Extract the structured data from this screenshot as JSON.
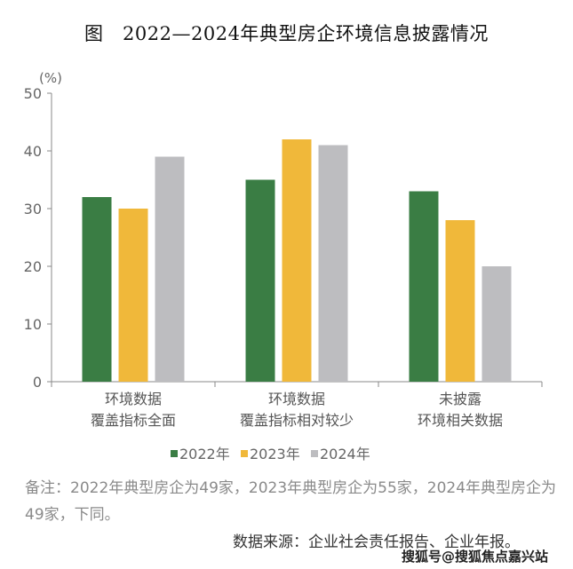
{
  "chart_data": {
    "type": "bar",
    "title": "图　2022—2024年典型房企环境信息披露情况",
    "ylabel": "(%)",
    "ylim": [
      0,
      50
    ],
    "yticks": [
      0,
      10,
      20,
      30,
      40,
      50
    ],
    "categories": [
      [
        "环境数据",
        "覆盖指标全面"
      ],
      [
        "环境数据",
        "覆盖指标相对较少"
      ],
      [
        "未披露",
        "环境相关数据"
      ]
    ],
    "series": [
      {
        "name": "2022年",
        "color": "#3a7d44",
        "values": [
          32,
          35,
          33
        ]
      },
      {
        "name": "2023年",
        "color": "#f0b83a",
        "values": [
          30,
          42,
          28
        ]
      },
      {
        "name": "2024年",
        "color": "#bdbdc0",
        "values": [
          39,
          41,
          20
        ]
      }
    ],
    "grid": false,
    "legend": "bottom"
  },
  "note": "备注：2022年典型房企为49家，2023年典型房企为55家，2024年典型房企为49家，下同。",
  "source": "数据来源：企业社会责任报告、企业年报。",
  "watermark": "搜狐号@搜狐焦点嘉兴站"
}
